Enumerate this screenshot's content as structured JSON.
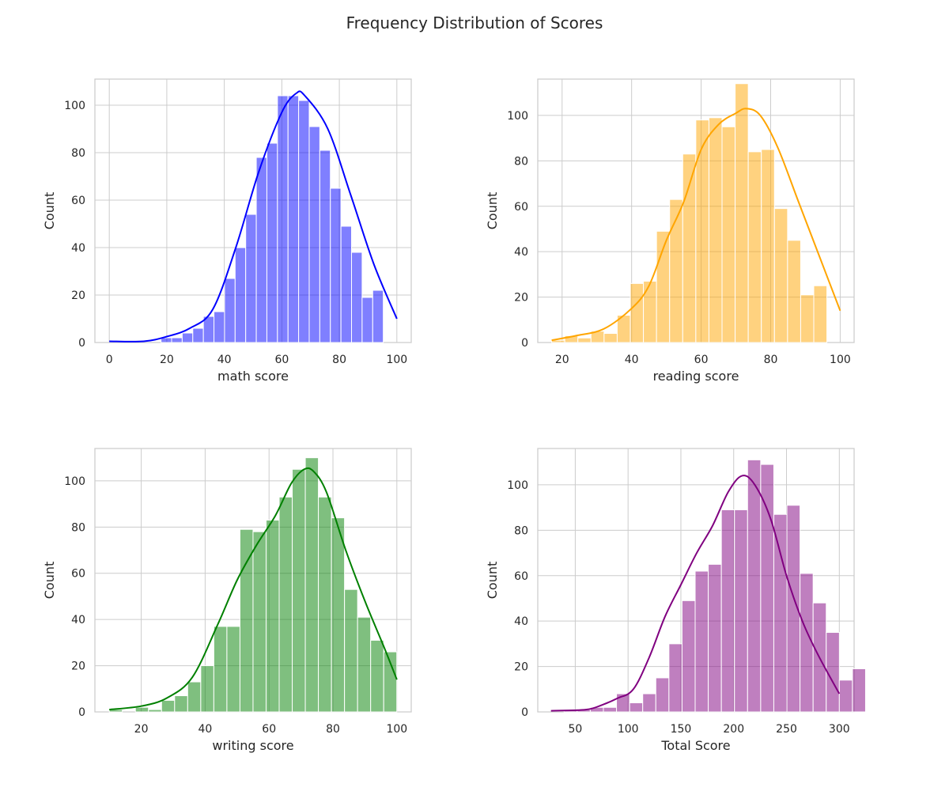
{
  "figure": {
    "title": "Frequency Distribution of Scores"
  },
  "chart_data": [
    {
      "type": "bar",
      "xlabel": "math score",
      "ylabel": "Count",
      "xlim": [
        -5,
        105
      ],
      "ylim": [
        0,
        111
      ],
      "xticks": [
        0,
        20,
        40,
        60,
        80,
        100
      ],
      "yticks": [
        0,
        20,
        40,
        60,
        80,
        100
      ],
      "grid": true,
      "color": "#0000ff",
      "kde": true,
      "bin_start": 18,
      "bin_width": 3.68,
      "counts": [
        2,
        2,
        4,
        6,
        11,
        13,
        27,
        40,
        54,
        78,
        84,
        104,
        104,
        102,
        91,
        81,
        65,
        49,
        38,
        19,
        22
      ],
      "kde_curve": [
        [
          0,
          0.5
        ],
        [
          12,
          0.5
        ],
        [
          20,
          2.5
        ],
        [
          28,
          6
        ],
        [
          36,
          14
        ],
        [
          44,
          40
        ],
        [
          52,
          72
        ],
        [
          60,
          97
        ],
        [
          65,
          105
        ],
        [
          68,
          104
        ],
        [
          76,
          90
        ],
        [
          84,
          62
        ],
        [
          92,
          33
        ],
        [
          100,
          10
        ]
      ]
    },
    {
      "type": "bar",
      "xlabel": "reading score",
      "ylabel": "Count",
      "xlim": [
        13,
        104
      ],
      "ylim": [
        0,
        116
      ],
      "xticks": [
        20,
        40,
        60,
        80,
        100
      ],
      "yticks": [
        0,
        20,
        40,
        60,
        80,
        100
      ],
      "grid": true,
      "color": "#ffa500",
      "kde": true,
      "bin_start": 17,
      "bin_width": 3.77,
      "counts": [
        1,
        3,
        2,
        5,
        4,
        12,
        26,
        27,
        49,
        63,
        83,
        98,
        99,
        95,
        114,
        84,
        85,
        59,
        45,
        21,
        25
      ],
      "kde_curve": [
        [
          17,
          1
        ],
        [
          24,
          3
        ],
        [
          32,
          6
        ],
        [
          40,
          15
        ],
        [
          45,
          25
        ],
        [
          50,
          45
        ],
        [
          55,
          62
        ],
        [
          60,
          85
        ],
        [
          65,
          96
        ],
        [
          70,
          101
        ],
        [
          73,
          103
        ],
        [
          77,
          100
        ],
        [
          82,
          86
        ],
        [
          88,
          62
        ],
        [
          94,
          38
        ],
        [
          100,
          14
        ]
      ]
    },
    {
      "type": "bar",
      "xlabel": "writing score",
      "ylabel": "Count",
      "xlim": [
        5.5,
        104.5
      ],
      "ylim": [
        0,
        114
      ],
      "xticks": [
        20,
        40,
        60,
        80,
        100
      ],
      "yticks": [
        0,
        20,
        40,
        60,
        80,
        100
      ],
      "grid": true,
      "color": "#008000",
      "kde": true,
      "bin_start": 10,
      "bin_width": 4.09,
      "counts": [
        1,
        0,
        2,
        1,
        5,
        7,
        13,
        20,
        37,
        37,
        79,
        78,
        83,
        93,
        105,
        110,
        93,
        84,
        53,
        41,
        31,
        26
      ],
      "kde_curve": [
        [
          10,
          1
        ],
        [
          20,
          2.5
        ],
        [
          28,
          6
        ],
        [
          36,
          15
        ],
        [
          44,
          38
        ],
        [
          50,
          57
        ],
        [
          56,
          72
        ],
        [
          62,
          85
        ],
        [
          67,
          99
        ],
        [
          71,
          105
        ],
        [
          74,
          104
        ],
        [
          78,
          95
        ],
        [
          84,
          70
        ],
        [
          90,
          48
        ],
        [
          96,
          28
        ],
        [
          100,
          14
        ]
      ]
    },
    {
      "type": "bar",
      "xlabel": "Total Score",
      "ylabel": "Count",
      "xlim": [
        14.5,
        314
      ],
      "ylim": [
        0,
        116
      ],
      "xticks": [
        50,
        100,
        150,
        200,
        250,
        300
      ],
      "yticks": [
        0,
        20,
        40,
        60,
        80,
        100
      ],
      "grid": true,
      "color": "#800080",
      "kde": true,
      "bin_start": 27,
      "bin_width": 12.41,
      "counts": [
        0,
        1,
        1,
        2,
        2,
        8,
        4,
        8,
        15,
        30,
        49,
        62,
        65,
        89,
        89,
        111,
        109,
        87,
        91,
        61,
        48,
        35,
        14,
        19
      ],
      "kde_curve": [
        [
          27,
          0.5
        ],
        [
          60,
          1
        ],
        [
          75,
          3
        ],
        [
          90,
          6
        ],
        [
          105,
          10
        ],
        [
          120,
          24
        ],
        [
          135,
          42
        ],
        [
          150,
          56
        ],
        [
          165,
          70
        ],
        [
          180,
          82
        ],
        [
          195,
          97
        ],
        [
          208,
          104
        ],
        [
          220,
          100
        ],
        [
          235,
          85
        ],
        [
          250,
          60
        ],
        [
          265,
          40
        ],
        [
          280,
          25
        ],
        [
          300,
          8
        ]
      ]
    }
  ]
}
